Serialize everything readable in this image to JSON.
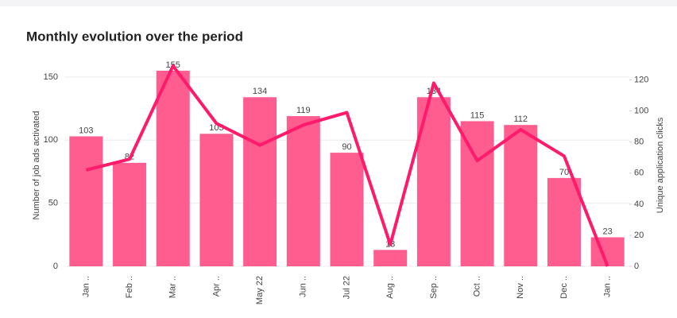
{
  "chart_data": {
    "type": "bar",
    "title": "Monthly evolution over the period",
    "y_label": "Number of job ads activated",
    "y2_label": "Unique application clicks",
    "categories": [
      "Jan ..",
      "Feb ..",
      "Mar ..",
      "Apr ..",
      "May 22",
      "Jun ..",
      "Jul 22",
      "Aug ..",
      "Sep ..",
      "Oct ..",
      "Nov ..",
      "Dec ..",
      "Jan .."
    ],
    "series": [
      {
        "name": "Number of job ads activated",
        "color": "#ff5c8f",
        "values": [
          103,
          82,
          155,
          105,
          134,
          119,
          90,
          13,
          134,
          115,
          112,
          70,
          23
        ]
      },
      {
        "name": "Unique application clicks",
        "color": "#ff1a6b",
        "axis": "y2",
        "type": "line",
        "values": [
          62,
          69,
          129,
          92,
          78,
          91,
          99,
          14,
          118,
          68,
          88,
          71,
          0
        ]
      }
    ],
    "ylim": [
      0,
      160
    ],
    "yticks": [
      0,
      50,
      100,
      150
    ],
    "y2lim": [
      0,
      130
    ],
    "y2ticks": [
      0,
      20,
      40,
      60,
      80,
      100,
      120
    ],
    "grid": true
  }
}
